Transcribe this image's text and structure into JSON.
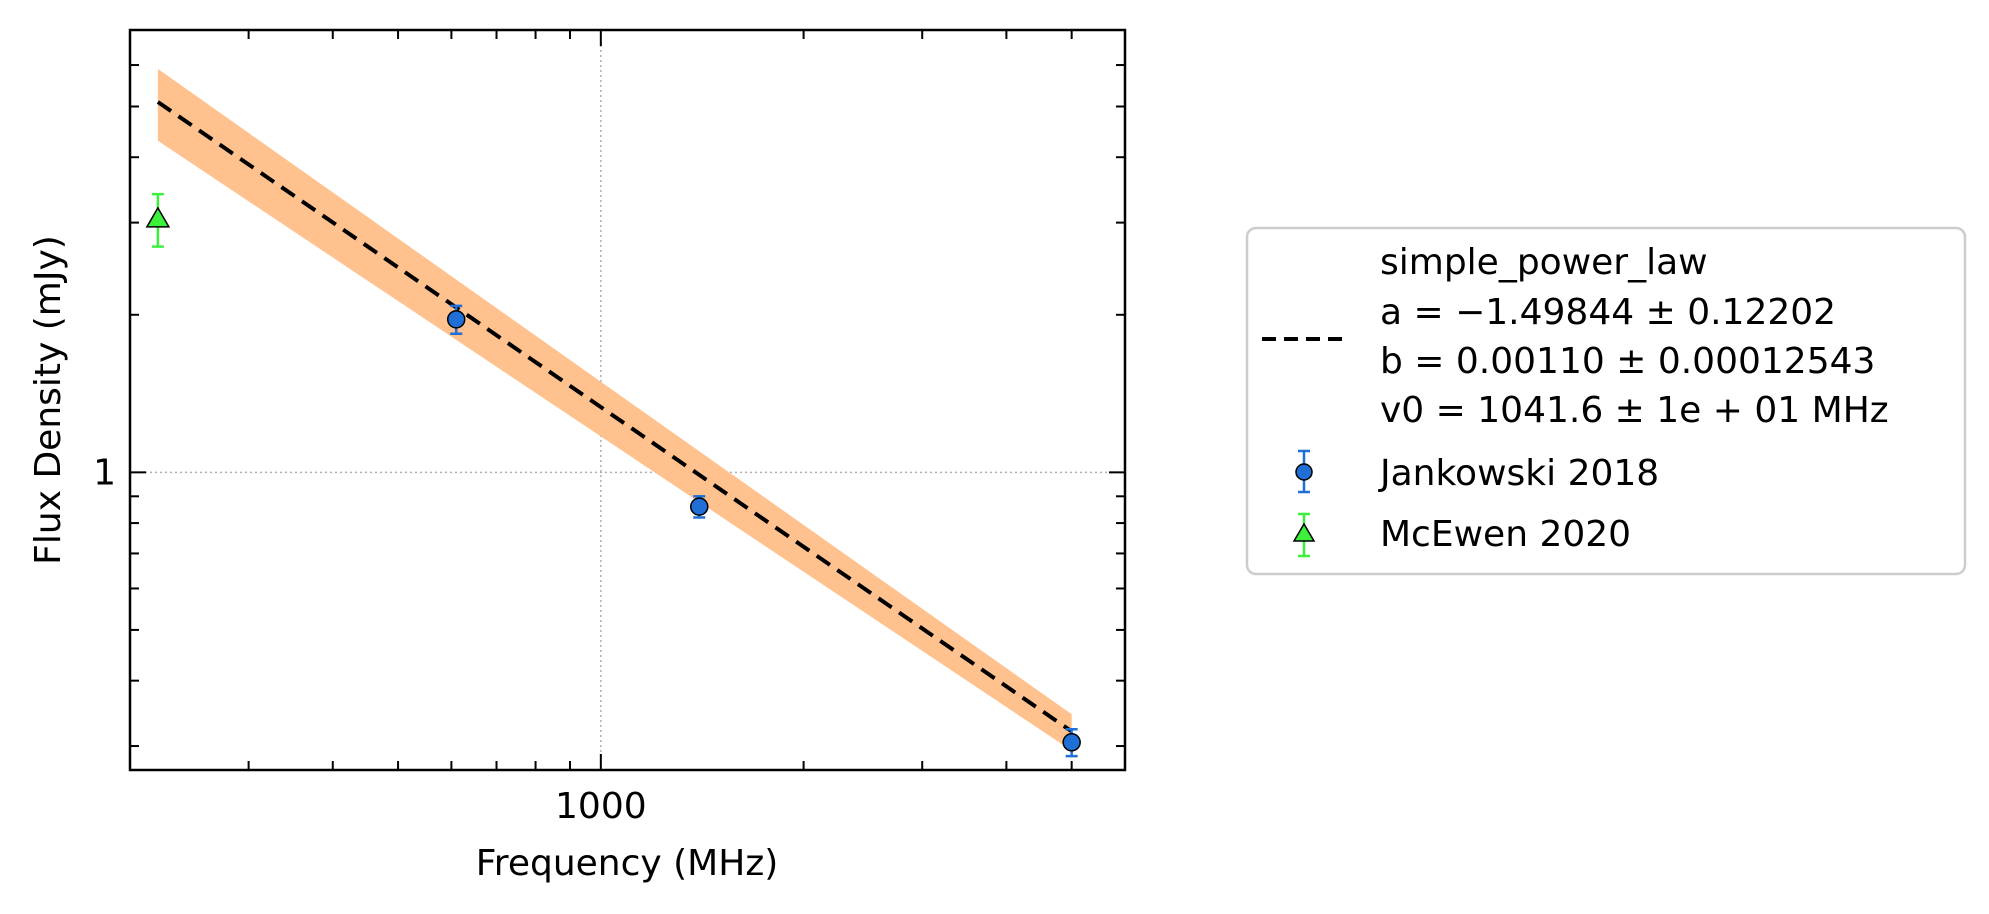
{
  "chart_data": {
    "type": "scatter",
    "xscale": "log",
    "yscale": "log",
    "xlim": [
      200,
      6000
    ],
    "ylim": [
      0.27,
      7.0
    ],
    "xlabel": "Frequency (MHz)",
    "ylabel": "Flux Density (mJy)",
    "x_ticks": [
      {
        "value": 1000,
        "label": "1000"
      }
    ],
    "y_ticks": [
      {
        "value": 1,
        "label": "1"
      }
    ],
    "grid": true,
    "legend_position": "outside-right",
    "fit": {
      "name": "simple_power_law",
      "params": [
        "a = −1.49844 ± 0.12202",
        "b = 0.00110 ± 0.00012543",
        "v0 = 1041.6 ± 1e + 01 MHz"
      ],
      "a": -1.49844,
      "a_err": 0.12202,
      "b": 0.0011,
      "b_err": 0.00012543,
      "v0": 1041.6,
      "x_range": [
        220,
        5000
      ],
      "line_points": [
        {
          "x": 220,
          "y": 5.1
        },
        {
          "x": 5000,
          "y": 0.32
        }
      ],
      "band_upper": [
        {
          "x": 220,
          "y": 5.9
        },
        {
          "x": 5000,
          "y": 0.345
        }
      ],
      "band_lower": [
        {
          "x": 220,
          "y": 4.3
        },
        {
          "x": 5000,
          "y": 0.294
        }
      ],
      "line_color": "#000000",
      "band_color": "#ffc28e"
    },
    "series": [
      {
        "name": "Jankowski 2018",
        "marker": "circle",
        "color": "#1f6fd6",
        "points": [
          {
            "x": 610,
            "y": 1.96,
            "yerr_low": 0.12,
            "yerr_high": 0.12
          },
          {
            "x": 1400,
            "y": 0.86,
            "yerr_low": 0.04,
            "yerr_high": 0.04
          },
          {
            "x": 5000,
            "y": 0.305,
            "yerr_low": 0.018,
            "yerr_high": 0.018
          }
        ]
      },
      {
        "name": "McEwen 2020",
        "marker": "triangle",
        "color": "#3cf03c",
        "points": [
          {
            "x": 220,
            "y": 3.05,
            "yerr_low": 0.35,
            "yerr_high": 0.35
          }
        ]
      }
    ]
  }
}
